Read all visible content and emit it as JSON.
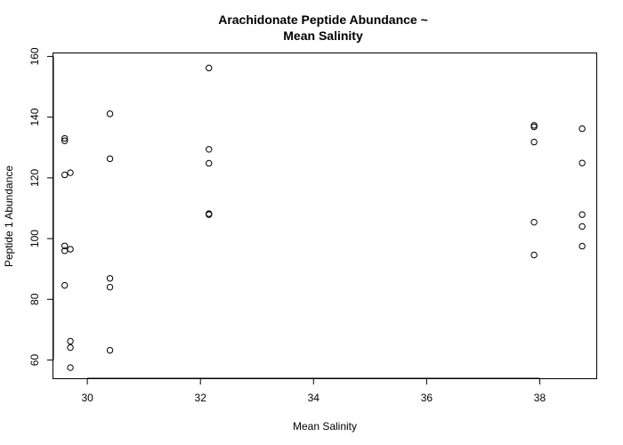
{
  "chart_data": {
    "type": "scatter",
    "title_line1": "Arachidonate Peptide Abundance ~",
    "title_line2": "Mean Salinity",
    "xlabel": "Mean Salinity",
    "ylabel": "Peptide 1 Abundance",
    "xlim": [
      29.4,
      39.0
    ],
    "ylim": [
      54,
      161
    ],
    "x_ticks": [
      30,
      32,
      34,
      36,
      38
    ],
    "y_ticks": [
      60,
      80,
      100,
      120,
      140,
      160
    ],
    "grid": false,
    "points": [
      {
        "x": 29.6,
        "y": 133.0
      },
      {
        "x": 29.6,
        "y": 132.2
      },
      {
        "x": 29.6,
        "y": 121.0
      },
      {
        "x": 29.6,
        "y": 97.6
      },
      {
        "x": 29.6,
        "y": 96.0
      },
      {
        "x": 29.6,
        "y": 84.6
      },
      {
        "x": 29.7,
        "y": 121.7
      },
      {
        "x": 29.7,
        "y": 96.5
      },
      {
        "x": 29.7,
        "y": 66.2
      },
      {
        "x": 29.7,
        "y": 64.1
      },
      {
        "x": 29.7,
        "y": 57.5
      },
      {
        "x": 30.4,
        "y": 141.1
      },
      {
        "x": 30.4,
        "y": 126.3
      },
      {
        "x": 30.4,
        "y": 86.9
      },
      {
        "x": 30.4,
        "y": 84.0
      },
      {
        "x": 30.4,
        "y": 63.2
      },
      {
        "x": 32.15,
        "y": 156.2
      },
      {
        "x": 32.15,
        "y": 129.4
      },
      {
        "x": 32.15,
        "y": 124.8
      },
      {
        "x": 32.15,
        "y": 108.2
      },
      {
        "x": 32.15,
        "y": 107.9
      },
      {
        "x": 37.9,
        "y": 137.3
      },
      {
        "x": 37.9,
        "y": 136.8
      },
      {
        "x": 37.9,
        "y": 131.8
      },
      {
        "x": 37.9,
        "y": 105.4
      },
      {
        "x": 37.9,
        "y": 94.6
      },
      {
        "x": 38.75,
        "y": 136.2
      },
      {
        "x": 38.75,
        "y": 124.9
      },
      {
        "x": 38.75,
        "y": 107.9
      },
      {
        "x": 38.75,
        "y": 104.0
      },
      {
        "x": 38.75,
        "y": 97.5
      }
    ]
  }
}
